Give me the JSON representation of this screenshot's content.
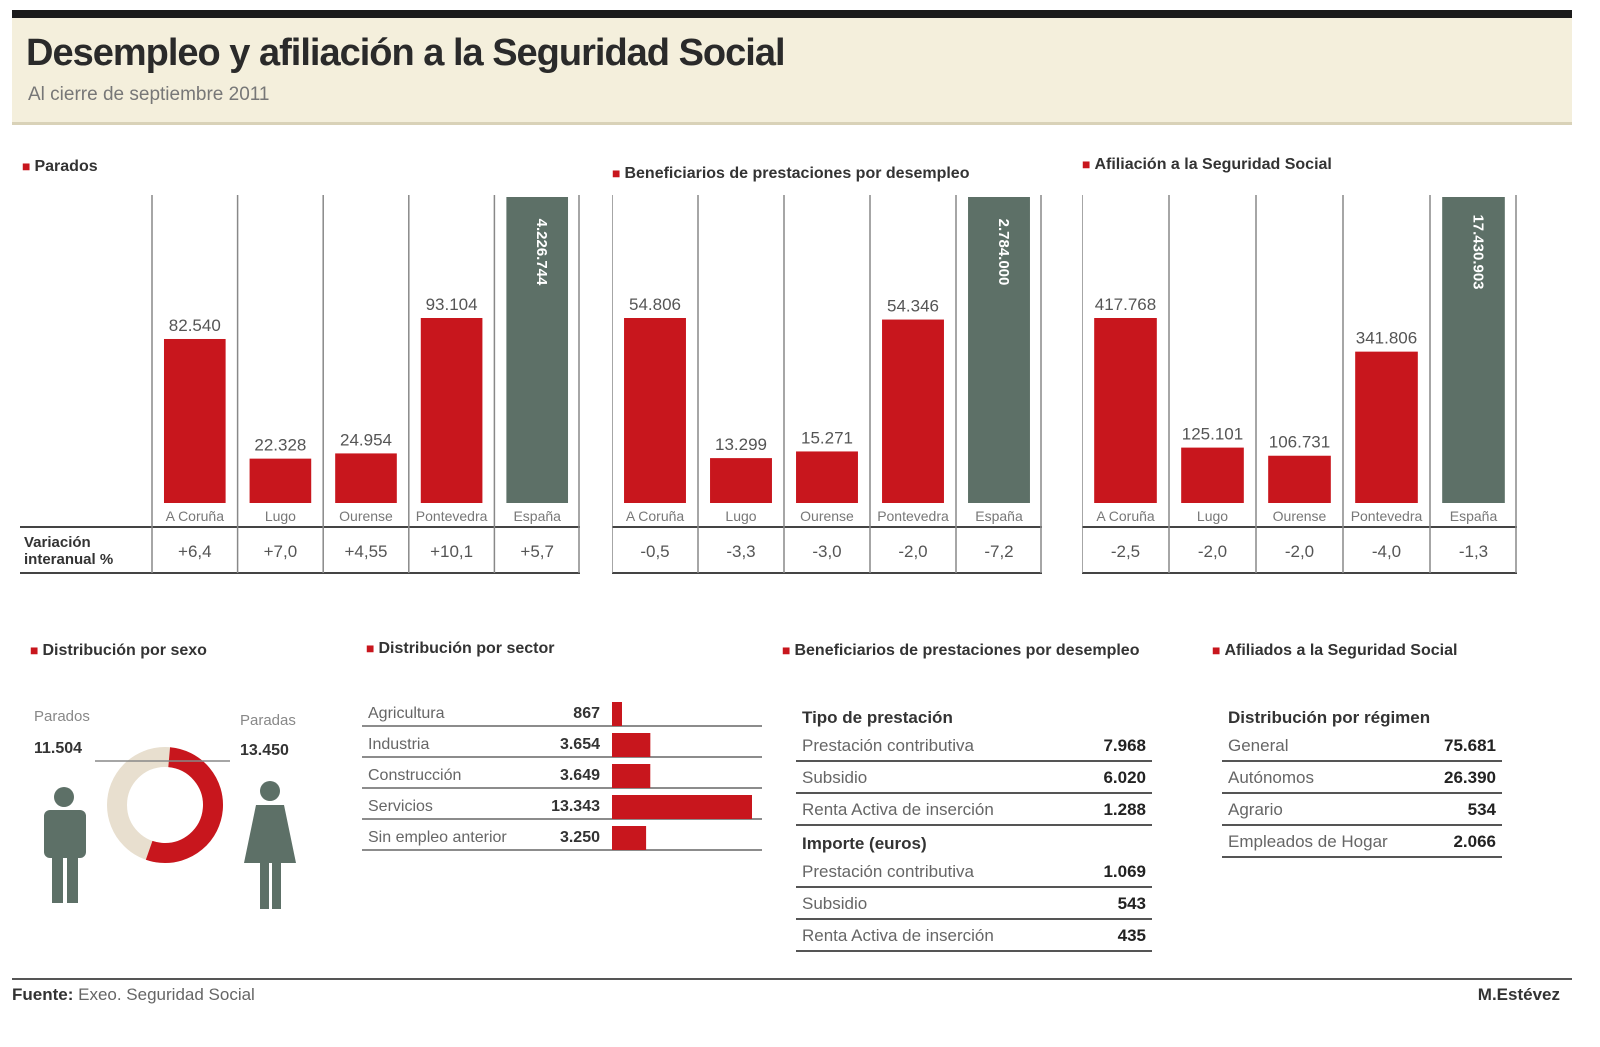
{
  "header": {
    "title": "Desempleo y afiliación a la Seguridad Social",
    "subtitle": "Al cierre de septiembre 2011"
  },
  "colors": {
    "red": "#c8161d",
    "gray": "#5d7067",
    "cream": "#e8dfcf",
    "text": "#222222"
  },
  "variation_label": "Variación interanual %",
  "chart_data": [
    {
      "type": "bar",
      "title": "Parados",
      "categories": [
        "A Coruña",
        "Lugo",
        "Ourense",
        "Pontevedra",
        "España"
      ],
      "values": [
        82540,
        22328,
        24954,
        93104,
        4226744
      ],
      "value_labels": [
        "82.540",
        "22.328",
        "24.954",
        "93.104",
        "4.226.744"
      ],
      "variation": [
        "+6,4",
        "+7,0",
        "+4,55",
        "+10,1",
        "+5,7"
      ]
    },
    {
      "type": "bar",
      "title": "Beneficiarios de prestaciones por desempleo",
      "categories": [
        "A Coruña",
        "Lugo",
        "Ourense",
        "Pontevedra",
        "España"
      ],
      "values": [
        54806,
        13299,
        15271,
        54346,
        2784000
      ],
      "value_labels": [
        "54.806",
        "13.299",
        "15.271",
        "54.346",
        "2.784.000"
      ],
      "variation": [
        "-0,5",
        "-3,3",
        "-3,0",
        "-2,0",
        "-7,2"
      ]
    },
    {
      "type": "bar",
      "title": "Afiliación a la Seguridad Social",
      "categories": [
        "A Coruña",
        "Lugo",
        "Ourense",
        "Pontevedra",
        "España"
      ],
      "values": [
        417768,
        125101,
        106731,
        341806,
        17430903
      ],
      "value_labels": [
        "417.768",
        "125.101",
        "106.731",
        "341.806",
        "17.430.903"
      ],
      "variation": [
        "-2,5",
        "-2,0",
        "-2,0",
        "-4,0",
        "-1,3"
      ]
    },
    {
      "type": "pie",
      "title": "Distribución por sexo",
      "labels": [
        "Parados",
        "Paradas"
      ],
      "values": [
        11504,
        13450
      ],
      "value_labels": [
        "11.504",
        "13.450"
      ]
    },
    {
      "type": "bar",
      "title": "Distribución por sector",
      "categories": [
        "Agricultura",
        "Industria",
        "Construcción",
        "Servicios",
        "Sin empleo anterior"
      ],
      "values": [
        867,
        3654,
        3649,
        13343,
        3250
      ],
      "value_labels": [
        "867",
        "3.654",
        "3.649",
        "13.343",
        "3.250"
      ]
    }
  ],
  "benef_table": {
    "title": "Beneficiarios de prestaciones por desempleo",
    "group1": "Tipo de prestación",
    "rows1": [
      {
        "label": "Prestación contributiva",
        "value": "7.968"
      },
      {
        "label": "Subsidio",
        "value": "6.020"
      },
      {
        "label": "Renta Activa de inserción",
        "value": "1.288"
      }
    ],
    "group2": "Importe (euros)",
    "rows2": [
      {
        "label": "Prestación contributiva",
        "value": "1.069"
      },
      {
        "label": "Subsidio",
        "value": "543"
      },
      {
        "label": "Renta Activa de inserción",
        "value": "435"
      }
    ]
  },
  "afil_table": {
    "title": "Afiliados a la Seguridad Social",
    "group": "Distribución por régimen",
    "rows": [
      {
        "label": "General",
        "value": "75.681"
      },
      {
        "label": "Autónomos",
        "value": "26.390"
      },
      {
        "label": "Agrario",
        "value": "534"
      },
      {
        "label": "Empleados de Hogar",
        "value": "2.066"
      }
    ]
  },
  "footer": {
    "source_label": "Fuente:",
    "source_text": " Exeo. Seguridad Social",
    "credit": "M.Estévez"
  }
}
